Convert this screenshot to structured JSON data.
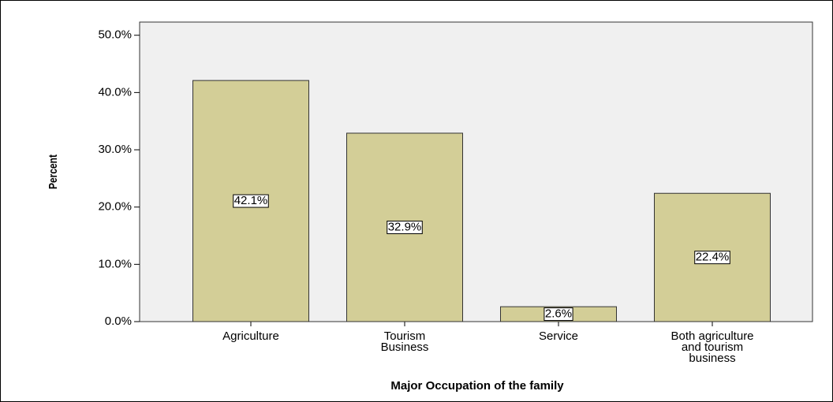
{
  "chart_data": {
    "type": "bar",
    "x_label": "Major Occupation of the family",
    "y_label": "Percent",
    "categories": [
      "Agriculture",
      "Tourism Business",
      "Service",
      "Both agriculture and tourism business"
    ],
    "values": [
      42.1,
      32.9,
      2.6,
      22.4
    ],
    "value_labels": [
      "42.1%",
      "32.9%",
      "2.6%",
      "22.4%"
    ],
    "color": "#d3ce97",
    "ylim": [
      0,
      52.3
    ],
    "yticks": [
      {
        "value": 0,
        "label": "0.0%"
      },
      {
        "value": 10,
        "label": "10.0%"
      },
      {
        "value": 20,
        "label": "20.0%"
      },
      {
        "value": 30,
        "label": "30.0%"
      },
      {
        "value": 40,
        "label": "40.0%"
      },
      {
        "value": 50,
        "label": "50.0%"
      }
    ]
  }
}
